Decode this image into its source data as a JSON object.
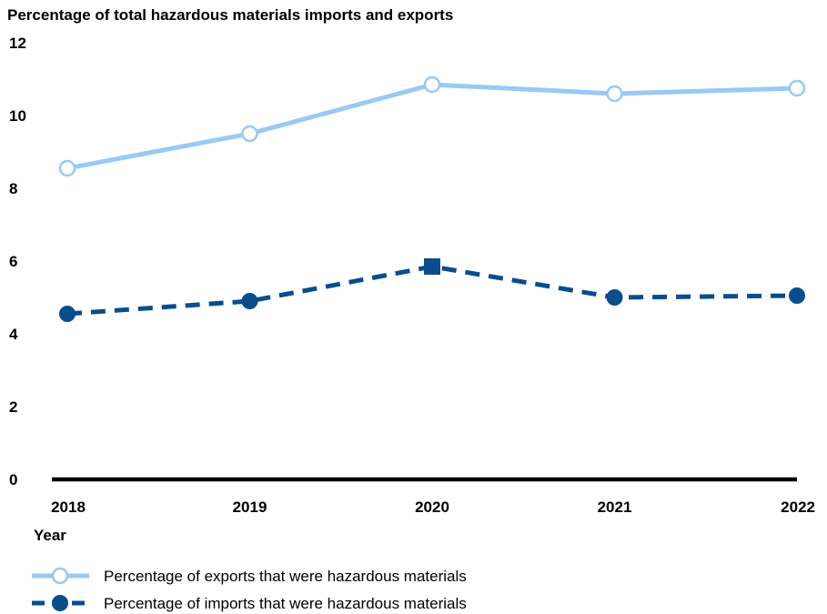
{
  "chart_data": {
    "type": "line",
    "title": "Percentage of total hazardous materials imports and exports",
    "xlabel": "Year",
    "ylabel": "",
    "categories": [
      "2018",
      "2019",
      "2020",
      "2021",
      "2022"
    ],
    "ylim": [
      0,
      12
    ],
    "yticks": [
      0,
      2,
      4,
      6,
      8,
      10,
      12
    ],
    "grid": false,
    "legend_position": "bottom-left",
    "series": [
      {
        "name": "Percentage of exports that were hazardous materials",
        "values": [
          8.55,
          9.5,
          10.85,
          10.6,
          10.75
        ],
        "color": "#99c9f5",
        "line_style": "solid",
        "marker": "open-circle"
      },
      {
        "name": "Percentage of imports that were hazardous materials",
        "values": [
          4.55,
          4.9,
          5.85,
          5.0,
          5.05
        ],
        "color": "#0a4d8c",
        "line_style": "dashed",
        "marker": "filled-circle",
        "markers": [
          "filled-circle",
          "filled-circle",
          "filled-square",
          "filled-circle",
          "filled-circle"
        ]
      }
    ],
    "axis_color": "#000000"
  }
}
